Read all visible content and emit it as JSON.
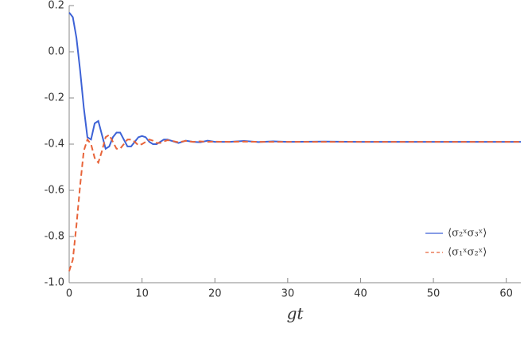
{
  "chart_data": {
    "type": "line",
    "x_label": "gt",
    "x": [
      0,
      0.5,
      1,
      1.5,
      2,
      2.5,
      3,
      3.5,
      4,
      4.5,
      5,
      5.5,
      6,
      6.5,
      7,
      7.5,
      8,
      8.5,
      9,
      9.5,
      10,
      10.5,
      11,
      11.5,
      12,
      12.5,
      13,
      13.5,
      14,
      15,
      16,
      17,
      18,
      19,
      20,
      22,
      24,
      26,
      28,
      30,
      35,
      40,
      50,
      62
    ],
    "series": [
      {
        "name": "⟨σ₂ˣσ₃ˣ⟩",
        "color": "#3d62d6",
        "dashed": false,
        "values": [
          0.17,
          0.15,
          0.06,
          -0.08,
          -0.24,
          -0.37,
          -0.38,
          -0.31,
          -0.3,
          -0.36,
          -0.42,
          -0.41,
          -0.37,
          -0.35,
          -0.35,
          -0.38,
          -0.41,
          -0.41,
          -0.39,
          -0.37,
          -0.365,
          -0.37,
          -0.39,
          -0.4,
          -0.4,
          -0.39,
          -0.38,
          -0.38,
          -0.385,
          -0.395,
          -0.385,
          -0.39,
          -0.392,
          -0.385,
          -0.39,
          -0.39,
          -0.386,
          -0.391,
          -0.388,
          -0.39,
          -0.389,
          -0.39,
          -0.39,
          -0.39
        ]
      },
      {
        "name": "⟨σ₁ˣσ₂ˣ⟩",
        "color": "#e8643a",
        "dashed": true,
        "values": [
          -0.95,
          -0.9,
          -0.75,
          -0.58,
          -0.43,
          -0.38,
          -0.4,
          -0.46,
          -0.48,
          -0.43,
          -0.37,
          -0.36,
          -0.39,
          -0.42,
          -0.42,
          -0.4,
          -0.38,
          -0.38,
          -0.39,
          -0.405,
          -0.4,
          -0.39,
          -0.38,
          -0.385,
          -0.395,
          -0.395,
          -0.388,
          -0.383,
          -0.385,
          -0.392,
          -0.386,
          -0.39,
          -0.388,
          -0.39,
          -0.389,
          -0.39,
          -0.389,
          -0.39,
          -0.39,
          -0.39,
          -0.39,
          -0.39,
          -0.39,
          -0.39
        ]
      }
    ],
    "xlim": [
      0,
      62
    ],
    "xticks": [
      0,
      10,
      20,
      30,
      40,
      50,
      60
    ],
    "ylim": [
      -1.0,
      0.2
    ],
    "yticks": [
      {
        "value": -1.0,
        "label": "-1.0"
      },
      -0.8,
      -0.6,
      -0.4,
      -0.2,
      {
        "value": 0,
        "label": "0.0"
      },
      0.2
    ],
    "legend": "lower right"
  }
}
